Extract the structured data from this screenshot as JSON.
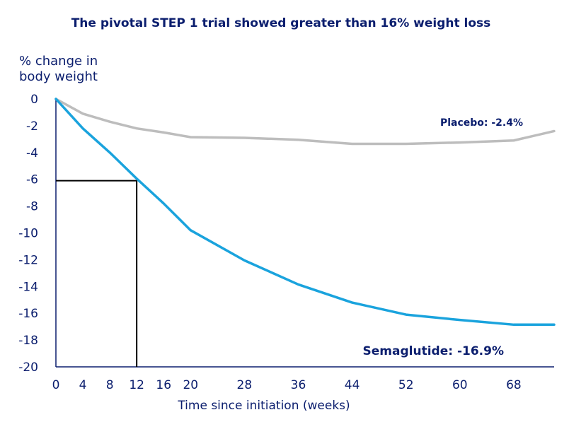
{
  "chart_data": {
    "type": "line",
    "title": "The pivotal STEP 1 trial showed greater than 16% weight loss",
    "ylabel_lines": [
      "% change in",
      "body weight"
    ],
    "xlabel": "Time since initiation (weeks)",
    "xlim": [
      0,
      74
    ],
    "ylim": [
      -20,
      0
    ],
    "x_ticks": [
      0,
      4,
      8,
      12,
      16,
      20,
      28,
      36,
      44,
      52,
      60,
      68
    ],
    "y_ticks": [
      0,
      -2,
      -4,
      -6,
      -8,
      -10,
      -12,
      -14,
      -16,
      -18,
      -20
    ],
    "grid": false,
    "series": [
      {
        "name": "Placebo",
        "color": "#bdbdbd",
        "x": [
          0,
          4,
          8,
          12,
          16,
          20,
          28,
          36,
          44,
          52,
          60,
          68,
          74
        ],
        "values": [
          0,
          -1.1,
          -1.7,
          -2.2,
          -2.5,
          -2.85,
          -2.9,
          -3.05,
          -3.35,
          -3.35,
          -3.25,
          -3.1,
          -2.4
        ]
      },
      {
        "name": "Semaglutide",
        "color": "#1aa3dd",
        "x": [
          0,
          4,
          8,
          12,
          16,
          20,
          28,
          36,
          44,
          52,
          60,
          68,
          74
        ],
        "values": [
          0,
          -2.2,
          -4.0,
          -5.95,
          -7.8,
          -9.8,
          -12.05,
          -13.85,
          -15.2,
          -16.1,
          -16.5,
          -16.85,
          -16.85
        ]
      }
    ],
    "annotations": {
      "placebo": "Placebo: -2.4%",
      "semaglutide": "Semaglutide: -16.9%"
    },
    "reference": {
      "x": 12,
      "y": -6.1
    },
    "colors": {
      "title": "#0b1e6e",
      "text": "#0b1e6e",
      "axis": "#0b1e6e",
      "reference": "#000000"
    }
  }
}
